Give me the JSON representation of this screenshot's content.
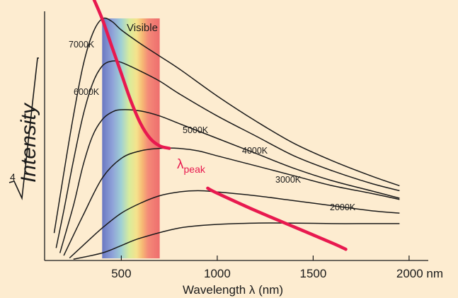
{
  "chart_data": {
    "type": "line",
    "xlabel": "Wavelength λ (nm)",
    "ylabel_italic": "Intensity",
    "ylabel_root_index": "4",
    "x_ticks": [
      500,
      1000,
      1500,
      2000
    ],
    "x_tick_labels": [
      "500",
      "1000",
      "1500",
      "2000 nm"
    ],
    "xlim": [
      100,
      2100
    ],
    "ylim": [
      0,
      1
    ],
    "annotation_visible": "Visible",
    "peak_label_main": "λ",
    "peak_label_sub": "peak",
    "visible_band": {
      "from": 400,
      "to": 700
    },
    "colors": {
      "background": "#fdecd0",
      "curve": "#1a1a1a",
      "peak": "#e8194f",
      "axis": "#1a1a1a"
    },
    "series": [
      {
        "name": "7000K",
        "points": [
          [
            150,
            0.11
          ],
          [
            200,
            0.35
          ],
          [
            250,
            0.58
          ],
          [
            300,
            0.78
          ],
          [
            350,
            0.91
          ],
          [
            400,
            0.97
          ],
          [
            450,
            0.96
          ],
          [
            500,
            0.925
          ],
          [
            600,
            0.87
          ],
          [
            700,
            0.82
          ],
          [
            800,
            0.77
          ],
          [
            1000,
            0.66
          ],
          [
            1200,
            0.56
          ],
          [
            1400,
            0.47
          ],
          [
            1600,
            0.4
          ],
          [
            1800,
            0.34
          ],
          [
            1950,
            0.3
          ]
        ]
      },
      {
        "name": "6000K",
        "points": [
          [
            160,
            0.05
          ],
          [
            200,
            0.2
          ],
          [
            250,
            0.4
          ],
          [
            300,
            0.58
          ],
          [
            350,
            0.71
          ],
          [
            400,
            0.78
          ],
          [
            450,
            0.8
          ],
          [
            500,
            0.795
          ],
          [
            600,
            0.76
          ],
          [
            700,
            0.72
          ],
          [
            800,
            0.67
          ],
          [
            1000,
            0.58
          ],
          [
            1200,
            0.5
          ],
          [
            1400,
            0.42
          ],
          [
            1600,
            0.36
          ],
          [
            1800,
            0.31
          ],
          [
            1950,
            0.28
          ]
        ]
      },
      {
        "name": "5000K",
        "points": [
          [
            180,
            0.03
          ],
          [
            250,
            0.22
          ],
          [
            300,
            0.38
          ],
          [
            350,
            0.5
          ],
          [
            400,
            0.565
          ],
          [
            450,
            0.595
          ],
          [
            500,
            0.605
          ],
          [
            600,
            0.6
          ],
          [
            700,
            0.58
          ],
          [
            800,
            0.55
          ],
          [
            1000,
            0.49
          ],
          [
            1200,
            0.43
          ],
          [
            1400,
            0.37
          ],
          [
            1600,
            0.32
          ],
          [
            1800,
            0.28
          ],
          [
            1950,
            0.25
          ]
        ]
      },
      {
        "name": "4000K",
        "points": [
          [
            200,
            0.02
          ],
          [
            300,
            0.18
          ],
          [
            400,
            0.33
          ],
          [
            500,
            0.41
          ],
          [
            600,
            0.44
          ],
          [
            700,
            0.45
          ],
          [
            800,
            0.45
          ],
          [
            900,
            0.44
          ],
          [
            1000,
            0.42
          ],
          [
            1200,
            0.38
          ],
          [
            1400,
            0.34
          ],
          [
            1600,
            0.3
          ],
          [
            1800,
            0.27
          ],
          [
            1950,
            0.245
          ]
        ]
      },
      {
        "name": "3000K",
        "points": [
          [
            230,
            0.01
          ],
          [
            300,
            0.06
          ],
          [
            400,
            0.13
          ],
          [
            500,
            0.19
          ],
          [
            600,
            0.23
          ],
          [
            700,
            0.26
          ],
          [
            800,
            0.275
          ],
          [
            900,
            0.28
          ],
          [
            1000,
            0.275
          ],
          [
            1200,
            0.26
          ],
          [
            1400,
            0.24
          ],
          [
            1600,
            0.22
          ],
          [
            1800,
            0.2
          ],
          [
            1950,
            0.19
          ]
        ]
      },
      {
        "name": "2000K",
        "points": [
          [
            250,
            0.005
          ],
          [
            400,
            0.03
          ],
          [
            500,
            0.06
          ],
          [
            600,
            0.09
          ],
          [
            800,
            0.13
          ],
          [
            1000,
            0.145
          ],
          [
            1200,
            0.15
          ],
          [
            1400,
            0.15
          ],
          [
            1600,
            0.148
          ],
          [
            1800,
            0.148
          ],
          [
            1950,
            0.148
          ]
        ]
      }
    ],
    "peak_curve": [
      [
        350,
        1.06
      ],
      [
        400,
        0.97
      ],
      [
        450,
        0.86
      ],
      [
        500,
        0.75
      ],
      [
        550,
        0.64
      ],
      [
        600,
        0.55
      ],
      [
        650,
        0.49
      ],
      [
        700,
        0.46
      ],
      [
        750,
        0.45
      ]
    ],
    "peak_curve_tail": [
      [
        950,
        0.29
      ],
      [
        1000,
        0.27
      ],
      [
        1200,
        0.2
      ],
      [
        1400,
        0.135
      ],
      [
        1600,
        0.07
      ],
      [
        1670,
        0.045
      ]
    ]
  }
}
